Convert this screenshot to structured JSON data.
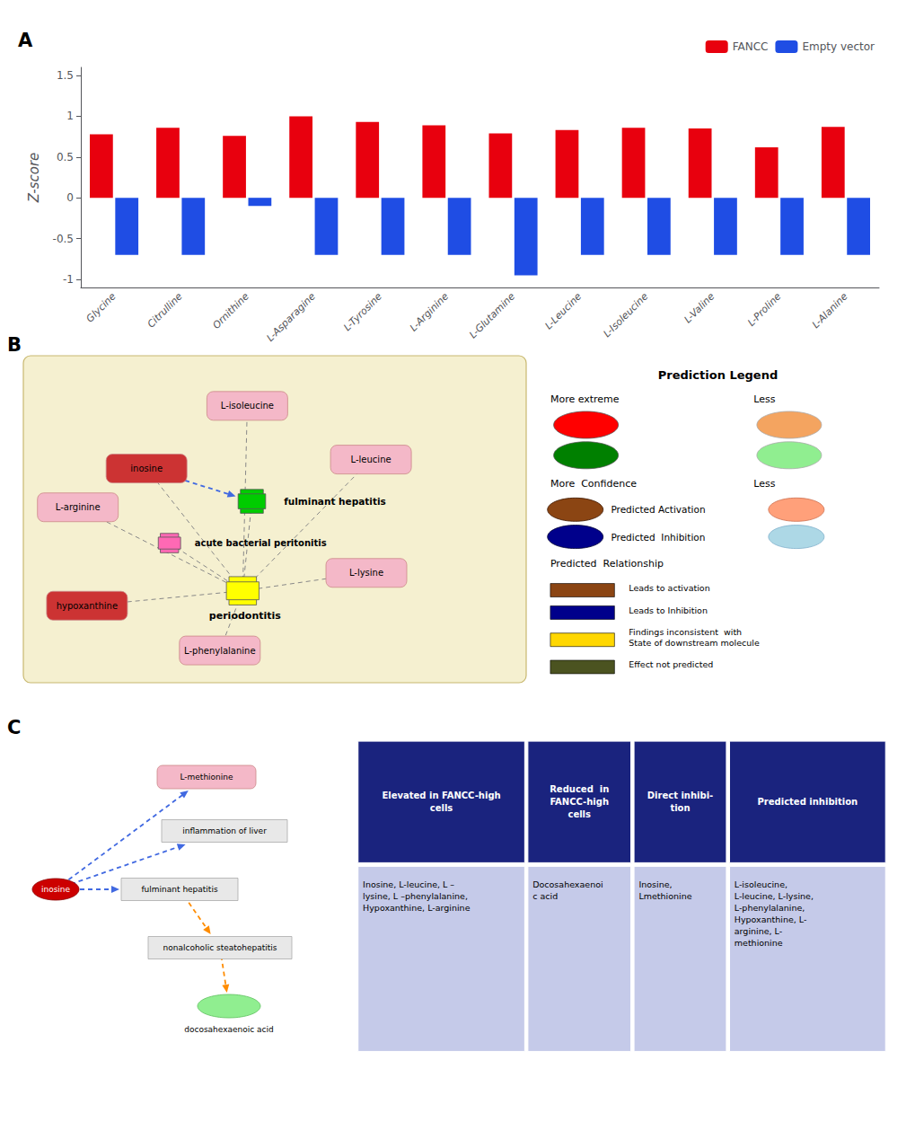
{
  "chart_data": {
    "type": "bar",
    "categories": [
      "Glycine",
      "Citrulline",
      "Ornithine",
      "L-Asparagine",
      "L-Tyrosine",
      "L-Arginine",
      "L-Glutamine",
      "L-Leucine",
      "L-Isoleucine",
      "L-Valine",
      "L-Proline",
      "L-Alanine"
    ],
    "series": [
      {
        "name": "FANCC",
        "color": "#e8000e",
        "values": [
          0.78,
          0.86,
          0.76,
          1.0,
          0.93,
          0.89,
          0.79,
          0.83,
          0.86,
          0.85,
          0.62,
          0.87
        ]
      },
      {
        "name": "Empty vector",
        "color": "#1f4de4",
        "values": [
          -0.7,
          -0.7,
          -0.1,
          -0.7,
          -0.7,
          -0.7,
          -0.95,
          -0.7,
          -0.7,
          -0.7,
          -0.7,
          -0.7
        ]
      }
    ],
    "ylabel": "Z-score",
    "ylim": [
      -1.1,
      1.6
    ],
    "yticks": [
      -1,
      -0.5,
      0,
      0.5,
      1,
      1.5
    ],
    "grid": false,
    "legend": "upper right",
    "annotations": [
      "A",
      "B",
      "C",
      "inosine",
      "L-isoleucine",
      "L-leucine",
      "L-arginine",
      "L-lysine",
      "hypoxanthine",
      "L-phenylalanine",
      "periodontitis",
      "fulminant hepatitis",
      "acute bacterial peritonitis",
      "Prediction Legend",
      "More extreme",
      "Less",
      "More  Confidence",
      "Less",
      "Predicted Activation",
      "Predicted  Inhibition",
      "Predicted  Relationship",
      "Leads to activation",
      "Leads to Inhibition",
      "Findings inconsistent  with\nState of downstream molecule",
      "Effect not predicted",
      "inflammation of liver",
      "fulminant hepatitis",
      "nonalcoholic steatohepatitis",
      "inosine",
      "L-methionine",
      "docosahexaenoic acid",
      "Elevated in FANCC-high\ncells",
      "Reduced  in\nFANCC-high\ncells",
      "Direct inhibi-\ntion",
      "Predicted inhibition",
      "Inosine, L-leucine, L –\nlysine, L –phenylalanine,\nHypoxanthine, L-arginine",
      "Docosahexaenoi\nc acid",
      "Inosine,\nLmethionine",
      "L-isoleucine,\nL-leucine, L-lysine,\nL-phenylalanine,\nHypoxanthine, L-\narginine, L-\nmethionine"
    ]
  }
}
